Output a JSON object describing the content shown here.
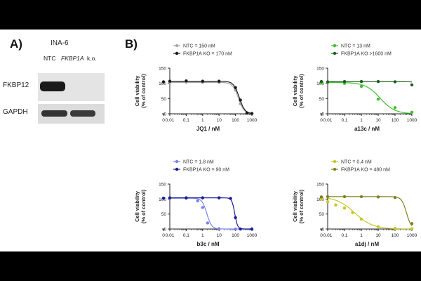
{
  "panel_a": {
    "letter": "A)",
    "cell_line": "INA-6",
    "lane_labels": [
      "NTC",
      "FKBP1A",
      "k.o."
    ],
    "row_labels": [
      "FKBP12",
      "GAPDH"
    ]
  },
  "panel_b": {
    "letter": "B)"
  },
  "colors": {
    "bar": "#000000",
    "blot_band": "#1a1a1a"
  },
  "chart_data": [
    {
      "type": "line",
      "x_scale": "log-with-zero",
      "x_ticks": [
        "0",
        "0.01",
        "0.1",
        "1",
        "10",
        "100",
        "1000"
      ],
      "y_ticks": [
        "0",
        "50",
        "100",
        "150"
      ],
      "ylim": [
        0,
        150
      ],
      "xlabel": "JQ1 / nM",
      "ylabel": "Cell viability",
      "ylabel2": "(% of control)",
      "legend": "top-left",
      "series": [
        {
          "name": "NTC = 150 nM",
          "color": "#a6a6a6",
          "marker": "circle",
          "ec50": 150,
          "top": 103,
          "hill": 2.5,
          "x": [
            0,
            0.01,
            0.1,
            1,
            10,
            100,
            200,
            500,
            1000
          ],
          "y": [
            101,
            103,
            104,
            103,
            103,
            78,
            33,
            2,
            1
          ]
        },
        {
          "name": "FKBP1A KO = 170 nM",
          "color": "#1a1a1a",
          "marker": "circle",
          "ec50": 170,
          "top": 107,
          "hill": 2.5,
          "x": [
            0,
            0.01,
            0.1,
            1,
            10,
            100,
            200,
            500,
            1000
          ],
          "y": [
            105,
            107,
            108,
            107,
            107,
            86,
            45,
            3,
            1
          ]
        }
      ]
    },
    {
      "type": "line",
      "x_scale": "log-with-zero",
      "x_ticks": [
        "0",
        "0.01",
        "0.1",
        "1",
        "10",
        "100",
        "1000"
      ],
      "y_ticks": [
        "0",
        "50",
        "100",
        "150"
      ],
      "ylim": [
        0,
        150
      ],
      "xlabel": "a13c / nM",
      "ylabel": "Cell viability",
      "ylabel2": "(% of control)",
      "legend": "top-left",
      "series": [
        {
          "name": "NTC = 13 nM",
          "color": "#3fbf2f",
          "marker": "circle",
          "ec50": 13,
          "top": 103,
          "hill": 1,
          "x": [
            0,
            0.01,
            0.1,
            1,
            10,
            100,
            1000
          ],
          "y": [
            102,
            103,
            100,
            90,
            48,
            20,
            5
          ]
        },
        {
          "name": "FKBP1A KO >1600 nM",
          "color": "#1c5e1c",
          "marker": "circle",
          "ec50": 4000,
          "top": 106,
          "hill": 3,
          "x": [
            0,
            0.01,
            0.1,
            1,
            10,
            100,
            1000
          ],
          "y": [
            106,
            105,
            106,
            106,
            106,
            105,
            95
          ]
        }
      ]
    },
    {
      "type": "line",
      "x_scale": "log-with-zero",
      "x_ticks": [
        "0",
        "0.01",
        "0.1",
        "1",
        "10",
        "100",
        "1000"
      ],
      "y_ticks": [
        "0",
        "50",
        "100",
        "150"
      ],
      "ylim": [
        0,
        150
      ],
      "xlabel": "b3c / nM",
      "ylabel": "Cell viability",
      "ylabel2": "(% of control)",
      "legend": "top-left",
      "series": [
        {
          "name": "NTC = 1.8 nM",
          "color": "#7b84e6",
          "marker": "circle",
          "ec50": 1.8,
          "top": 103,
          "hill": 3,
          "x": [
            0,
            0.01,
            0.1,
            0.5,
            1,
            2,
            10,
            100,
            1000
          ],
          "y": [
            102,
            103,
            103,
            94,
            72,
            20,
            1,
            0,
            0
          ]
        },
        {
          "name": "FKBP1A KO = 90 nM",
          "color": "#1a1a99",
          "marker": "circle",
          "ec50": 90,
          "top": 104,
          "hill": 5,
          "x": [
            0,
            0.01,
            0.1,
            1,
            10,
            50,
            100,
            200,
            1000
          ],
          "y": [
            103,
            104,
            104,
            104,
            104,
            102,
            38,
            0,
            0
          ]
        }
      ]
    },
    {
      "type": "line",
      "x_scale": "log-with-zero",
      "x_ticks": [
        "0",
        "0.01",
        "0.1",
        "1",
        "10",
        "100",
        "1000"
      ],
      "y_ticks": [
        "0",
        "50",
        "100",
        "150"
      ],
      "ylim": [
        0,
        150
      ],
      "xlabel": "a1dj / nM",
      "ylabel": "Cell viability",
      "ylabel2": "(% of control)",
      "legend": "top-left",
      "series": [
        {
          "name": "NTC = 0.4 nM",
          "color": "#c8c62a",
          "marker": "circle",
          "ec50": 0.4,
          "top": 108,
          "hill": 0.8,
          "x": [
            0,
            0.01,
            0.03,
            0.1,
            0.3,
            1,
            10,
            100,
            1000
          ],
          "y": [
            100,
            91,
            80,
            70,
            55,
            33,
            8,
            2,
            1
          ]
        },
        {
          "name": "FKBP1A KO = 480 nM",
          "color": "#808020",
          "marker": "circle",
          "ec50": 480,
          "top": 108,
          "hill": 3,
          "x": [
            0,
            0.01,
            0.1,
            1,
            10,
            100,
            1000
          ],
          "y": [
            107,
            108,
            108,
            108,
            107,
            105,
            18
          ]
        }
      ]
    }
  ]
}
